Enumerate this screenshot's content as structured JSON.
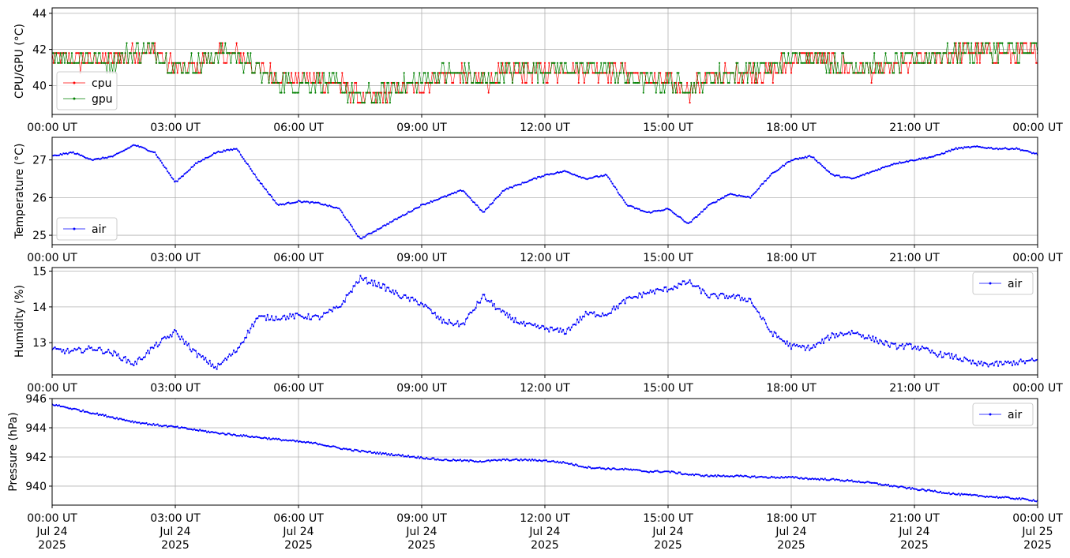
{
  "chart_data": [
    {
      "type": "line",
      "ylabel": "CPU/GPU (°C)",
      "ylim": [
        38.4,
        44.3
      ],
      "yticks": [
        40,
        42,
        44
      ],
      "x": [
        "00:00",
        "00:30",
        "01:00",
        "01:30",
        "02:00",
        "02:30",
        "03:00",
        "03:30",
        "04:00",
        "04:30",
        "05:00",
        "05:30",
        "06:00",
        "06:30",
        "07:00",
        "07:30",
        "08:00",
        "08:30",
        "09:00",
        "09:30",
        "10:00",
        "10:30",
        "11:00",
        "11:30",
        "12:00",
        "12:30",
        "13:00",
        "13:30",
        "14:00",
        "14:30",
        "15:00",
        "15:30",
        "16:00",
        "16:30",
        "17:00",
        "17:30",
        "18:00",
        "18:30",
        "19:00",
        "19:30",
        "20:00",
        "20:30",
        "21:00",
        "21:30",
        "22:00",
        "22:30",
        "23:00",
        "23:30",
        "24:00"
      ],
      "series": [
        {
          "name": "cpu",
          "color": "#ff0000",
          "values": [
            41.5,
            41.4,
            41.4,
            41.3,
            41.8,
            41.9,
            40.9,
            41.0,
            41.7,
            41.7,
            40.9,
            40.4,
            40.4,
            40.3,
            40.1,
            39.2,
            39.4,
            39.8,
            40.1,
            40.5,
            40.6,
            40.2,
            40.6,
            40.8,
            40.8,
            40.9,
            40.9,
            40.9,
            40.7,
            40.3,
            40.2,
            39.8,
            40.4,
            40.5,
            40.7,
            40.8,
            41.4,
            41.6,
            41.2,
            41.0,
            40.9,
            41.0,
            41.3,
            41.6,
            41.8,
            41.8,
            41.8,
            41.8,
            41.7
          ]
        },
        {
          "name": "gpu",
          "color": "#008000",
          "values": [
            41.6,
            41.5,
            41.5,
            41.4,
            41.9,
            41.9,
            41.0,
            41.1,
            41.8,
            41.8,
            40.7,
            40.2,
            40.2,
            40.2,
            40.0,
            39.3,
            39.5,
            40.0,
            40.3,
            40.6,
            40.7,
            40.1,
            40.7,
            41.0,
            40.9,
            41.0,
            41.0,
            41.0,
            40.5,
            40.2,
            40.1,
            39.9,
            40.5,
            40.6,
            40.9,
            40.9,
            41.5,
            41.7,
            41.3,
            41.1,
            41.0,
            41.1,
            41.4,
            41.7,
            41.9,
            41.9,
            41.9,
            41.9,
            41.8
          ]
        }
      ],
      "legend": "bottom-left",
      "grid": true
    },
    {
      "type": "line",
      "ylabel": "Temperature (°C)",
      "ylim": [
        24.75,
        27.6
      ],
      "yticks": [
        25,
        26,
        27
      ],
      "x": [
        "00:00",
        "00:30",
        "01:00",
        "01:30",
        "02:00",
        "02:30",
        "03:00",
        "03:30",
        "04:00",
        "04:30",
        "05:00",
        "05:30",
        "06:00",
        "06:30",
        "07:00",
        "07:30",
        "08:00",
        "08:30",
        "09:00",
        "09:30",
        "10:00",
        "10:30",
        "11:00",
        "11:30",
        "12:00",
        "12:30",
        "13:00",
        "13:30",
        "14:00",
        "14:30",
        "15:00",
        "15:30",
        "16:00",
        "16:30",
        "17:00",
        "17:30",
        "18:00",
        "18:30",
        "19:00",
        "19:30",
        "20:00",
        "20:30",
        "21:00",
        "21:30",
        "22:00",
        "22:30",
        "23:00",
        "23:30",
        "24:00"
      ],
      "series": [
        {
          "name": "air",
          "color": "#0000ff",
          "values": [
            27.1,
            27.2,
            27.0,
            27.1,
            27.4,
            27.2,
            26.4,
            26.9,
            27.2,
            27.3,
            26.5,
            25.8,
            25.9,
            25.85,
            25.7,
            24.9,
            25.2,
            25.5,
            25.8,
            26.0,
            26.2,
            25.6,
            26.2,
            26.4,
            26.6,
            26.7,
            26.5,
            26.6,
            25.8,
            25.6,
            25.7,
            25.3,
            25.8,
            26.1,
            26.0,
            26.6,
            27.0,
            27.1,
            26.6,
            26.5,
            26.7,
            26.9,
            27.0,
            27.1,
            27.3,
            27.35,
            27.3,
            27.3,
            27.15
          ]
        }
      ],
      "legend": "bottom-left",
      "grid": true
    },
    {
      "type": "line",
      "ylabel": "Humidity (%)",
      "ylim": [
        12.1,
        15.1
      ],
      "yticks": [
        13,
        14,
        15
      ],
      "x": [
        "00:00",
        "00:30",
        "01:00",
        "01:30",
        "02:00",
        "02:30",
        "03:00",
        "03:30",
        "04:00",
        "04:30",
        "05:00",
        "05:30",
        "06:00",
        "06:30",
        "07:00",
        "07:30",
        "08:00",
        "08:30",
        "09:00",
        "09:30",
        "10:00",
        "10:30",
        "11:00",
        "11:30",
        "12:00",
        "12:30",
        "13:00",
        "13:30",
        "14:00",
        "14:30",
        "15:00",
        "15:30",
        "16:00",
        "16:30",
        "17:00",
        "17:30",
        "18:00",
        "18:30",
        "19:00",
        "19:30",
        "20:00",
        "20:30",
        "21:00",
        "21:30",
        "22:00",
        "22:30",
        "23:00",
        "23:30",
        "24:00"
      ],
      "series": [
        {
          "name": "air",
          "color": "#0000ff",
          "values": [
            12.8,
            12.75,
            12.85,
            12.7,
            12.4,
            12.9,
            13.3,
            12.7,
            12.3,
            12.8,
            13.7,
            13.7,
            13.75,
            13.7,
            14.0,
            14.8,
            14.6,
            14.3,
            14.1,
            13.6,
            13.5,
            14.3,
            13.8,
            13.5,
            13.4,
            13.3,
            13.8,
            13.8,
            14.2,
            14.4,
            14.5,
            14.7,
            14.3,
            14.3,
            14.2,
            13.3,
            12.9,
            12.85,
            13.2,
            13.3,
            13.1,
            12.9,
            12.9,
            12.7,
            12.6,
            12.4,
            12.4,
            12.45,
            12.5
          ]
        }
      ],
      "legend": "top-right",
      "grid": true
    },
    {
      "type": "line",
      "ylabel": "Pressure (hPa)",
      "ylim": [
        938.7,
        946.0
      ],
      "yticks": [
        940,
        942,
        944,
        946
      ],
      "x": [
        "00:00",
        "00:30",
        "01:00",
        "01:30",
        "02:00",
        "02:30",
        "03:00",
        "03:30",
        "04:00",
        "04:30",
        "05:00",
        "05:30",
        "06:00",
        "06:30",
        "07:00",
        "07:30",
        "08:00",
        "08:30",
        "09:00",
        "09:30",
        "10:00",
        "10:30",
        "11:00",
        "11:30",
        "12:00",
        "12:30",
        "13:00",
        "13:30",
        "14:00",
        "14:30",
        "15:00",
        "15:30",
        "16:00",
        "16:30",
        "17:00",
        "17:30",
        "18:00",
        "18:30",
        "19:00",
        "19:30",
        "20:00",
        "20:30",
        "21:00",
        "21:30",
        "22:00",
        "22:30",
        "23:00",
        "23:30",
        "24:00"
      ],
      "series": [
        {
          "name": "air",
          "color": "#0000ff",
          "values": [
            945.6,
            945.3,
            945.0,
            944.7,
            944.4,
            944.2,
            944.05,
            943.85,
            943.65,
            943.5,
            943.35,
            943.2,
            943.05,
            942.9,
            942.6,
            942.4,
            942.25,
            942.1,
            941.95,
            941.8,
            941.75,
            941.7,
            941.8,
            941.8,
            941.75,
            941.6,
            941.3,
            941.2,
            941.15,
            941.0,
            941.0,
            940.8,
            940.7,
            940.7,
            940.65,
            940.6,
            940.6,
            940.5,
            940.45,
            940.35,
            940.2,
            940.0,
            939.8,
            939.65,
            939.45,
            939.35,
            939.25,
            939.15,
            939.0
          ]
        }
      ],
      "legend": "top-right",
      "grid": true
    }
  ],
  "xaxis": {
    "ticks": [
      "00:00 UT",
      "03:00 UT",
      "06:00 UT",
      "09:00 UT",
      "12:00 UT",
      "15:00 UT",
      "18:00 UT",
      "21:00 UT",
      "00:00 UT"
    ],
    "dates": [
      "Jul 24",
      "Jul 24",
      "Jul 24",
      "Jul 24",
      "Jul 24",
      "Jul 24",
      "Jul 24",
      "Jul 24",
      "Jul 25"
    ],
    "years": [
      "2025",
      "2025",
      "2025",
      "2025",
      "2025",
      "2025",
      "2025",
      "2025",
      "2025"
    ]
  }
}
